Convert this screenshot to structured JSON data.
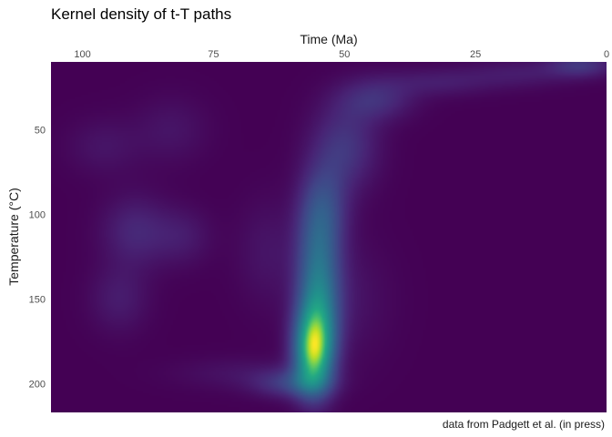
{
  "chart_data": {
    "type": "heatmap",
    "title": "Kernel density of t-T paths",
    "xlabel": "Time (Ma)",
    "ylabel": "Temperature (°C)",
    "caption": "data from Padgett et al. (in press)",
    "x_axis_position": "top",
    "x_reversed": true,
    "y_reversed": true,
    "xlim": [
      106,
      0
    ],
    "ylim": [
      10,
      217
    ],
    "x_ticks": [
      100,
      75,
      50,
      25,
      0
    ],
    "y_ticks": [
      50,
      100,
      150,
      200
    ],
    "grid": false,
    "legend": "none",
    "colormap": "viridis",
    "background_color": "#440154",
    "density_components": [
      {
        "time": 56,
        "temp": 182,
        "sd_time": 2.6,
        "sd_temp": 17,
        "weight": 1.0
      },
      {
        "time": 55,
        "temp": 162,
        "sd_time": 2.8,
        "sd_temp": 22,
        "weight": 0.55
      },
      {
        "time": 55,
        "temp": 125,
        "sd_time": 3.0,
        "sd_temp": 24,
        "weight": 0.45
      },
      {
        "time": 54,
        "temp": 95,
        "sd_time": 3.3,
        "sd_temp": 18,
        "weight": 0.3
      },
      {
        "time": 50,
        "temp": 60,
        "sd_time": 4.5,
        "sd_temp": 18,
        "weight": 0.28
      },
      {
        "time": 44,
        "temp": 32,
        "sd_time": 5.0,
        "sd_temp": 9,
        "weight": 0.24
      },
      {
        "time": 32,
        "temp": 22,
        "sd_time": 7.0,
        "sd_temp": 6,
        "weight": 0.14
      },
      {
        "time": 17,
        "temp": 17,
        "sd_time": 7.0,
        "sd_temp": 6,
        "weight": 0.13
      },
      {
        "time": 5,
        "temp": 12,
        "sd_time": 4.5,
        "sd_temp": 5,
        "weight": 0.28
      },
      {
        "time": 60,
        "temp": 200,
        "sd_time": 5.0,
        "sd_temp": 6,
        "weight": 0.3
      },
      {
        "time": 70,
        "temp": 194,
        "sd_time": 9.0,
        "sd_temp": 7,
        "weight": 0.09
      },
      {
        "time": 90,
        "temp": 110,
        "sd_time": 4.5,
        "sd_temp": 15,
        "weight": 0.2
      },
      {
        "time": 81,
        "temp": 113,
        "sd_time": 4.0,
        "sd_temp": 12,
        "weight": 0.13
      },
      {
        "time": 93,
        "temp": 150,
        "sd_time": 4.0,
        "sd_temp": 14,
        "weight": 0.14
      },
      {
        "time": 96,
        "temp": 60,
        "sd_time": 5.0,
        "sd_temp": 12,
        "weight": 0.1
      },
      {
        "time": 83,
        "temp": 50,
        "sd_time": 5.0,
        "sd_temp": 14,
        "weight": 0.1
      },
      {
        "time": 65,
        "temp": 122,
        "sd_time": 4.0,
        "sd_temp": 22,
        "weight": 0.1
      },
      {
        "time": 50,
        "temp": 150,
        "sd_time": 6.0,
        "sd_temp": 25,
        "weight": 0.1
      }
    ]
  }
}
